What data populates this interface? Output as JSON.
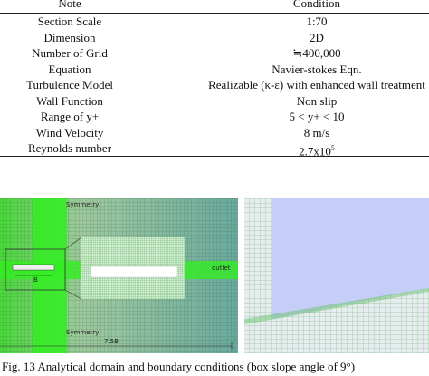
{
  "table": {
    "header": [
      "Note",
      "Condition"
    ],
    "rows": [
      [
        "Section Scale",
        "1:70"
      ],
      [
        "Dimension",
        "2D"
      ],
      [
        "Number of Grid",
        "≒400,000"
      ],
      [
        "Equation",
        "Navier-stokes Eqn."
      ],
      [
        "Turbulence Model",
        "Realizable (κ-ε) with enhanced wall treatment"
      ],
      [
        "Wall Function",
        "Non slip"
      ],
      [
        "Range of y+",
        "5 < y+ < 10"
      ],
      [
        "Wind Velocity",
        "8 m/s"
      ],
      [
        "Reynolds number",
        {
          "base": "2.7x10",
          "sup": "5"
        }
      ]
    ]
  },
  "figure": {
    "symmetry_top": "Symmetry",
    "symmetry_bottom": "Symmetry",
    "outlet": "outlet",
    "box": "B",
    "length": "7.5B"
  },
  "caption": "Fig. 13 Analytical domain and boundary conditions (box slope angle of 9°)"
}
